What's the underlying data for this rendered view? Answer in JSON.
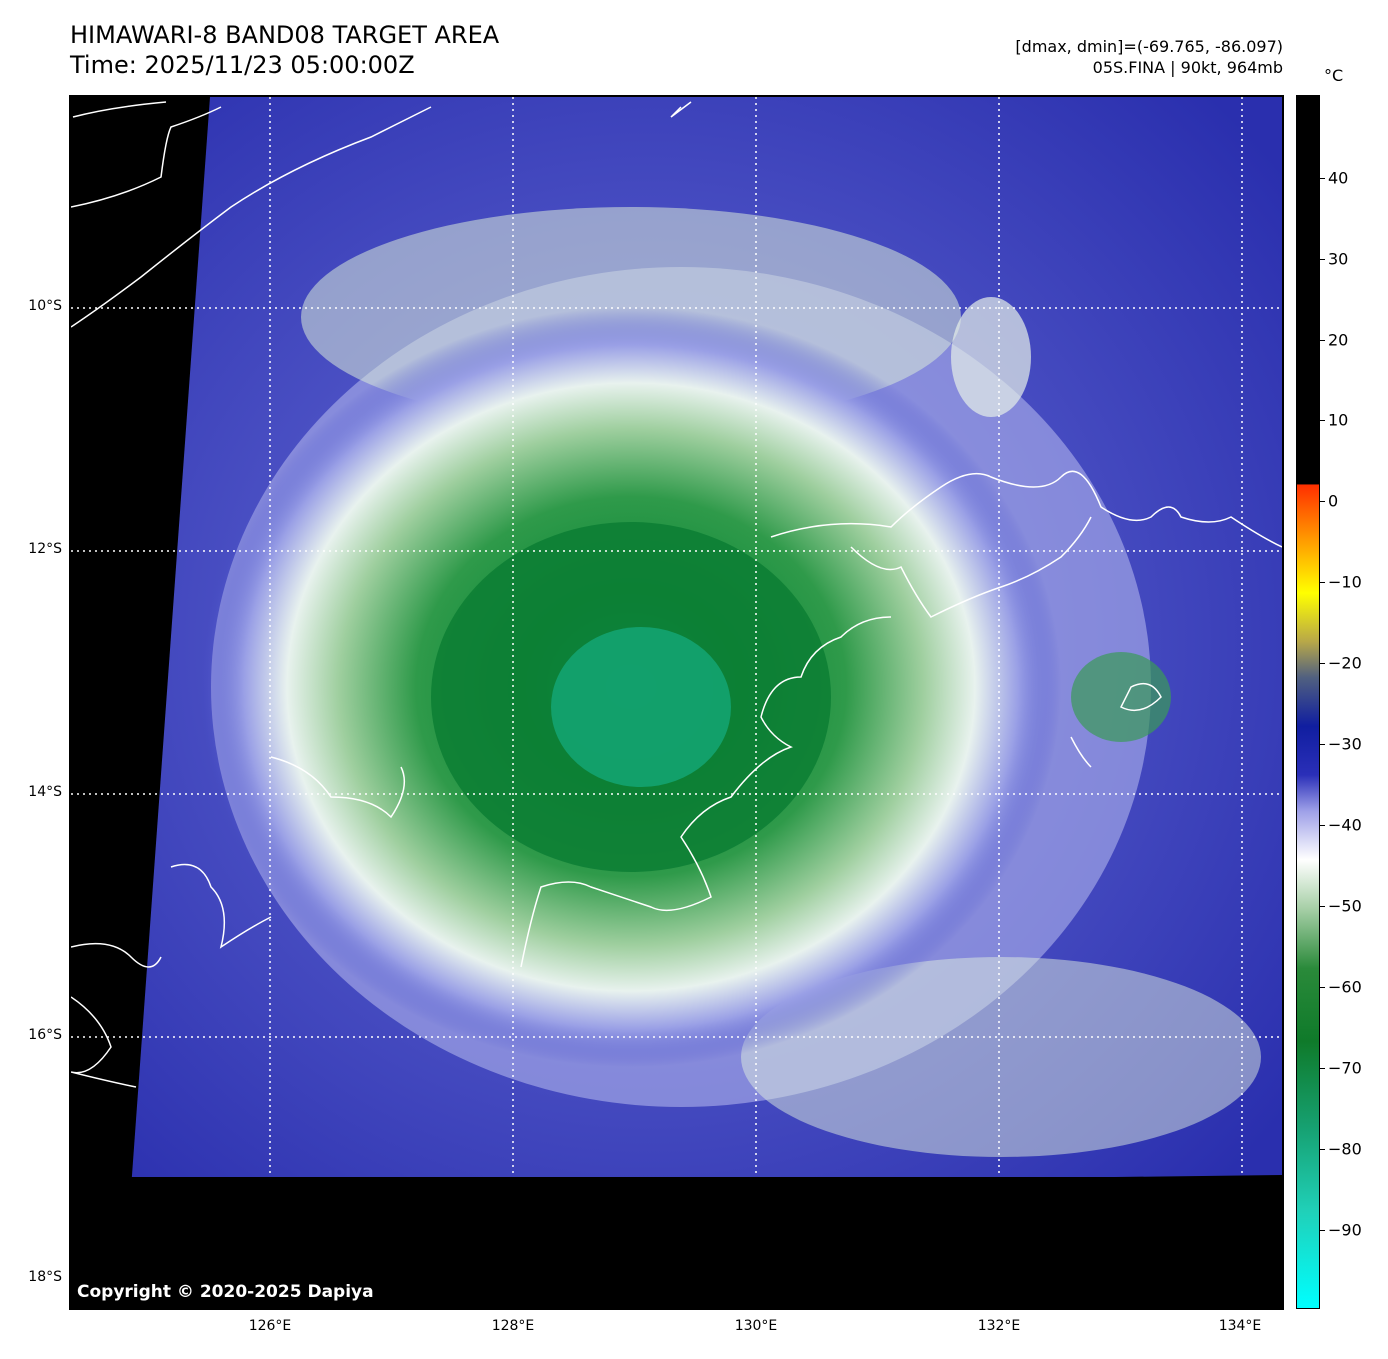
{
  "header": {
    "title_line1": "HIMAWARI-8 BAND08 TARGET AREA",
    "title_line2": "Time: 2025/11/23 05:00:00Z",
    "range_text": "[dmax, dmin]=(-69.765, -86.097)",
    "storm_text": "05S.FINA | 90kt, 964mb"
  },
  "colorbar": {
    "unit": "°C",
    "labels": [
      "40",
      "30",
      "20",
      "10",
      "0",
      "−10",
      "−20",
      "−30",
      "−40",
      "−50",
      "−60",
      "−70",
      "−80",
      "−90"
    ]
  },
  "axes": {
    "lat_labels": [
      "10°S",
      "12°S",
      "14°S",
      "16°S",
      "18°S"
    ],
    "lon_labels": [
      "126°E",
      "128°E",
      "130°E",
      "132°E",
      "134°E"
    ]
  },
  "map": {
    "copyright": "Copyright © 2020-2025 Dapiya",
    "colors": {
      "background": "#000000",
      "warm_cloud_free": "#3a3fbf",
      "cold_cloud_top": "#1a8a3a",
      "coast": "#ffffff"
    }
  }
}
